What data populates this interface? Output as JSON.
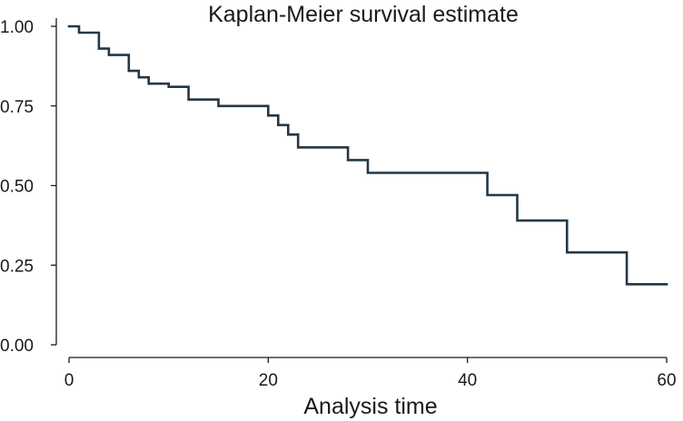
{
  "chart_data": {
    "type": "line",
    "title": "Kaplan-Meier survival estimate",
    "xlabel": "Analysis time",
    "ylabel": "",
    "xlim": [
      0,
      60
    ],
    "ylim": [
      0,
      1
    ],
    "x_ticks": [
      {
        "value": 0,
        "label": "0"
      },
      {
        "value": 20,
        "label": "20"
      },
      {
        "value": 40,
        "label": "40"
      },
      {
        "value": 60,
        "label": "60"
      }
    ],
    "y_ticks": [
      {
        "value": 0,
        "label": "0.00"
      },
      {
        "value": 0.25,
        "label": "0.25"
      },
      {
        "value": 0.5,
        "label": "0.50"
      },
      {
        "value": 0.75,
        "label": "0.75"
      },
      {
        "value": 1,
        "label": "1.00"
      }
    ],
    "grid": false,
    "line_color": "#253746",
    "series": [
      {
        "step": "post",
        "x": [
          0,
          1,
          3,
          4,
          6,
          7,
          8,
          10,
          12,
          15,
          20,
          21,
          22,
          23,
          28,
          30,
          42,
          45,
          50,
          56,
          60
        ],
        "y": [
          1.0,
          0.98,
          0.93,
          0.91,
          0.86,
          0.84,
          0.82,
          0.81,
          0.77,
          0.75,
          0.72,
          0.69,
          0.66,
          0.62,
          0.58,
          0.54,
          0.47,
          0.39,
          0.29,
          0.19,
          0.19
        ]
      }
    ]
  }
}
